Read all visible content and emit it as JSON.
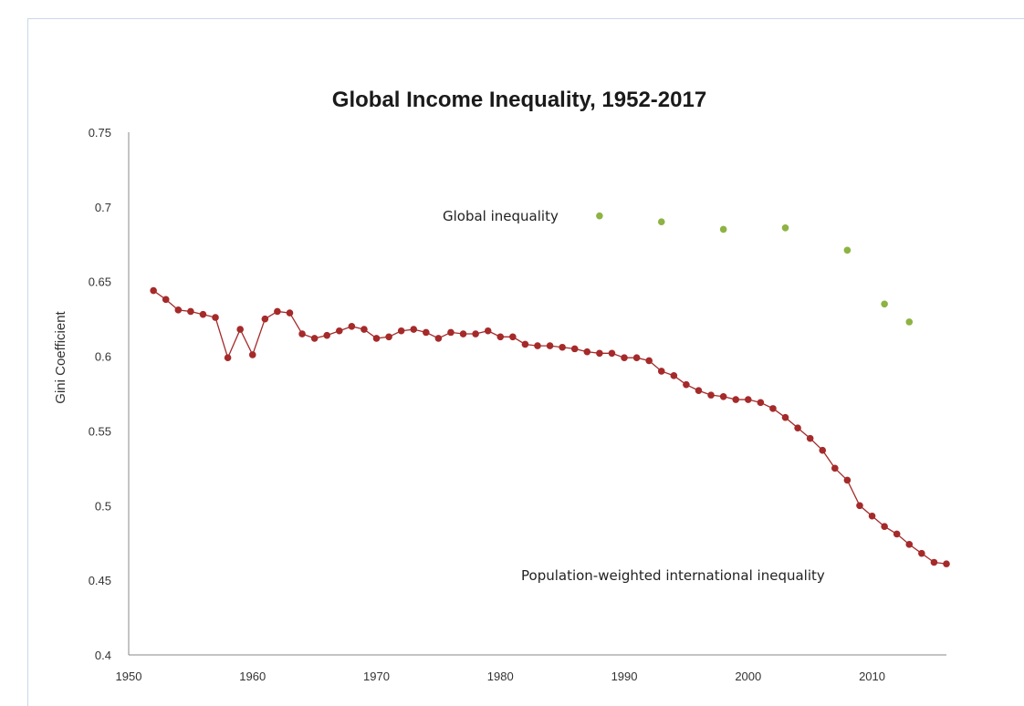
{
  "chart_data": {
    "type": "line",
    "title": "Global Income Inequality, 1952-2017",
    "xlabel": "",
    "ylabel": "Gini Coefficient",
    "xlim": [
      1950,
      2016
    ],
    "ylim": [
      0.4,
      0.75
    ],
    "grid": false,
    "x_ticks": [
      "1950",
      "1960",
      "1970",
      "1980",
      "1990",
      "2000",
      "2010"
    ],
    "y_ticks": [
      "0.4",
      "0.45",
      "0.5",
      "0.55",
      "0.6",
      "0.65",
      "0.7",
      "0.75"
    ],
    "series": [
      {
        "name": "Population-weighted international inequality",
        "type": "line",
        "color": "#a52a2a",
        "x": [
          1952,
          1953,
          1954,
          1955,
          1956,
          1957,
          1958,
          1959,
          1960,
          1961,
          1962,
          1963,
          1964,
          1965,
          1966,
          1967,
          1968,
          1969,
          1970,
          1971,
          1972,
          1973,
          1974,
          1975,
          1976,
          1977,
          1978,
          1979,
          1980,
          1981,
          1982,
          1983,
          1984,
          1985,
          1986,
          1987,
          1988,
          1989,
          1990,
          1991,
          1992,
          1993,
          1994,
          1995,
          1996,
          1997,
          1998,
          1999,
          2000,
          2001,
          2002,
          2003,
          2004,
          2005,
          2006,
          2007,
          2008,
          2009,
          2010,
          2011,
          2012,
          2013,
          2014,
          2015,
          2016
        ],
        "values": [
          0.644,
          0.638,
          0.631,
          0.63,
          0.628,
          0.626,
          0.599,
          0.618,
          0.601,
          0.625,
          0.63,
          0.629,
          0.615,
          0.612,
          0.614,
          0.617,
          0.62,
          0.618,
          0.612,
          0.613,
          0.617,
          0.618,
          0.616,
          0.612,
          0.616,
          0.615,
          0.615,
          0.617,
          0.613,
          0.613,
          0.608,
          0.607,
          0.607,
          0.606,
          0.605,
          0.603,
          0.602,
          0.602,
          0.599,
          0.599,
          0.597,
          0.59,
          0.587,
          0.581,
          0.577,
          0.574,
          0.573,
          0.571,
          0.571,
          0.569,
          0.565,
          0.559,
          0.552,
          0.545,
          0.537,
          0.525,
          0.517,
          0.5,
          0.493,
          0.486,
          0.481,
          0.474,
          0.468,
          0.462,
          0.461
        ]
      },
      {
        "name": "Global inequality",
        "type": "scatter",
        "color": "#8db343",
        "x": [
          1988,
          1993,
          1998,
          2003,
          2008,
          2011,
          2013
        ],
        "values": [
          0.694,
          0.69,
          0.685,
          0.686,
          0.671,
          0.635,
          0.623
        ]
      }
    ]
  }
}
